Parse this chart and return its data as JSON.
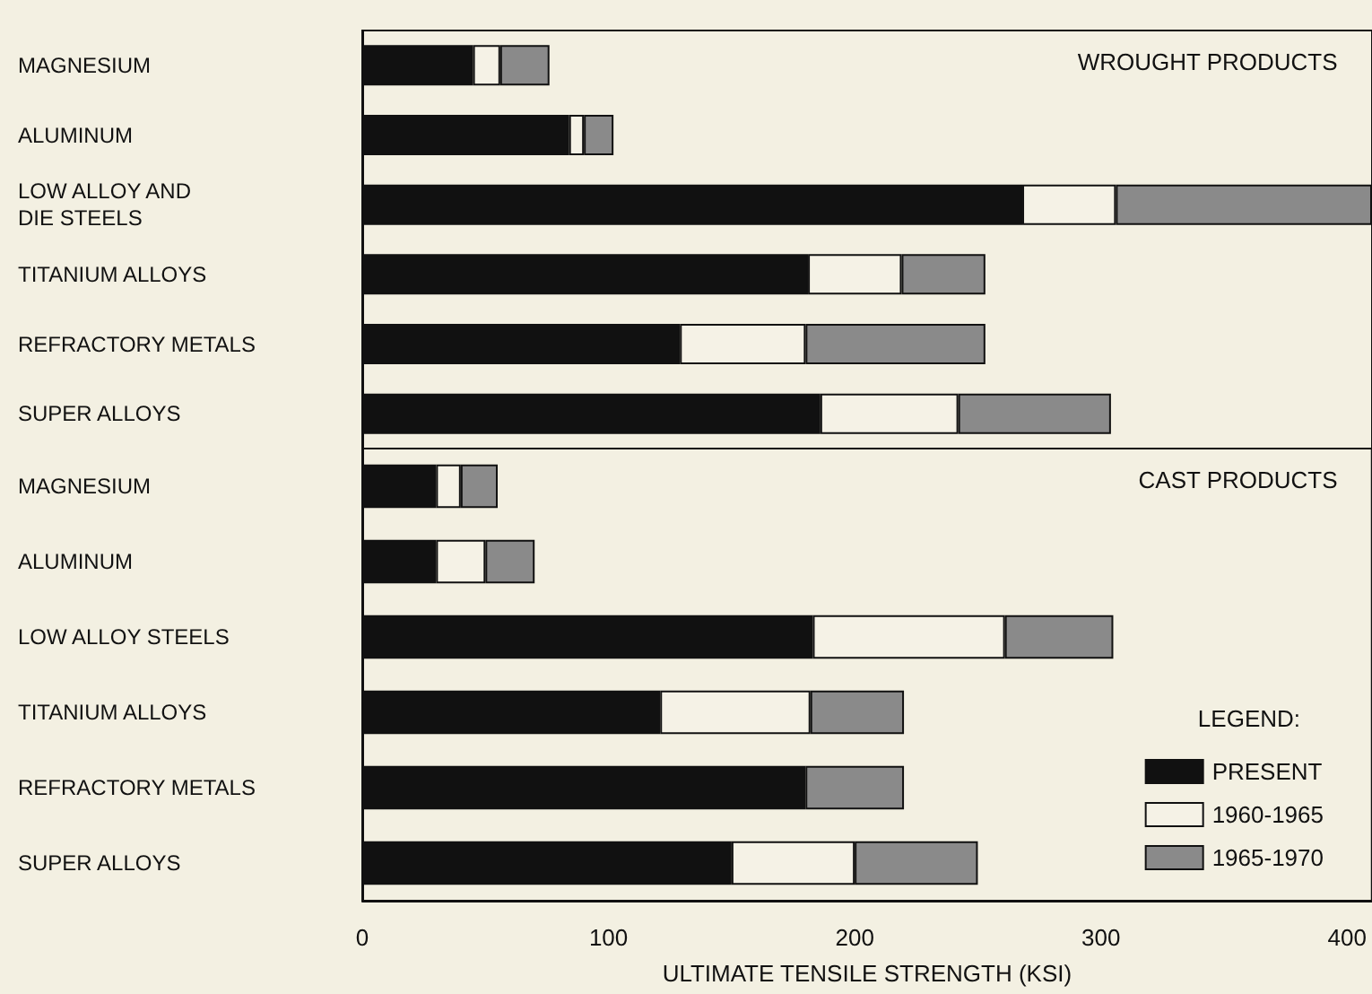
{
  "chart_data": [
    {
      "type": "bar",
      "orientation": "horizontal",
      "stacked": true,
      "title": "WROUGHT PRODUCTS",
      "categories": [
        "MAGNESIUM",
        "ALUMINUM",
        "LOW ALLOY AND\nDIE STEELS",
        "TITANIUM ALLOYS",
        "REFRACTORY METALS",
        "SUPER ALLOYS"
      ],
      "series": [
        {
          "color": "#111111",
          "values": [
            45,
            84,
            268,
            181,
            129,
            186
          ]
        },
        {
          "color": "#f5f2e6",
          "values": [
            11,
            6,
            38,
            38,
            51,
            56
          ]
        },
        {
          "color": "#8a8a8a",
          "values": [
            20,
            12,
            104,
            34,
            73,
            62
          ]
        }
      ],
      "xlim": [
        0,
        410
      ],
      "xticks": [
        0,
        100,
        200,
        300,
        400
      ],
      "tick_labels": "y",
      "legend": false,
      "grid": false
    },
    {
      "type": "bar",
      "orientation": "horizontal",
      "stacked": true,
      "title": "CAST PRODUCTS",
      "xlabel": "ULTIMATE TENSILE STRENGTH (KSI)",
      "legend_title": "LEGEND:",
      "categories": [
        "MAGNESIUM",
        "ALUMINUM",
        "LOW ALLOY STEELS",
        "TITANIUM ALLOYS",
        "REFRACTORY METALS",
        "SUPER ALLOYS"
      ],
      "series": [
        {
          "name": "PRESENT",
          "color": "#111111",
          "values": [
            30,
            30,
            183,
            121,
            180,
            150
          ]
        },
        {
          "name": "1960-1965",
          "color": "#f5f2e6",
          "values": [
            10,
            20,
            78,
            61,
            null,
            50
          ]
        },
        {
          "name": "1965-1970",
          "color": "#8a8a8a",
          "values": [
            15,
            20,
            44,
            38,
            40,
            50
          ]
        }
      ],
      "xlim": [
        0,
        410
      ],
      "xticks": [
        0,
        100,
        200,
        300,
        400
      ],
      "legend": "bottom right",
      "grid": false
    }
  ]
}
